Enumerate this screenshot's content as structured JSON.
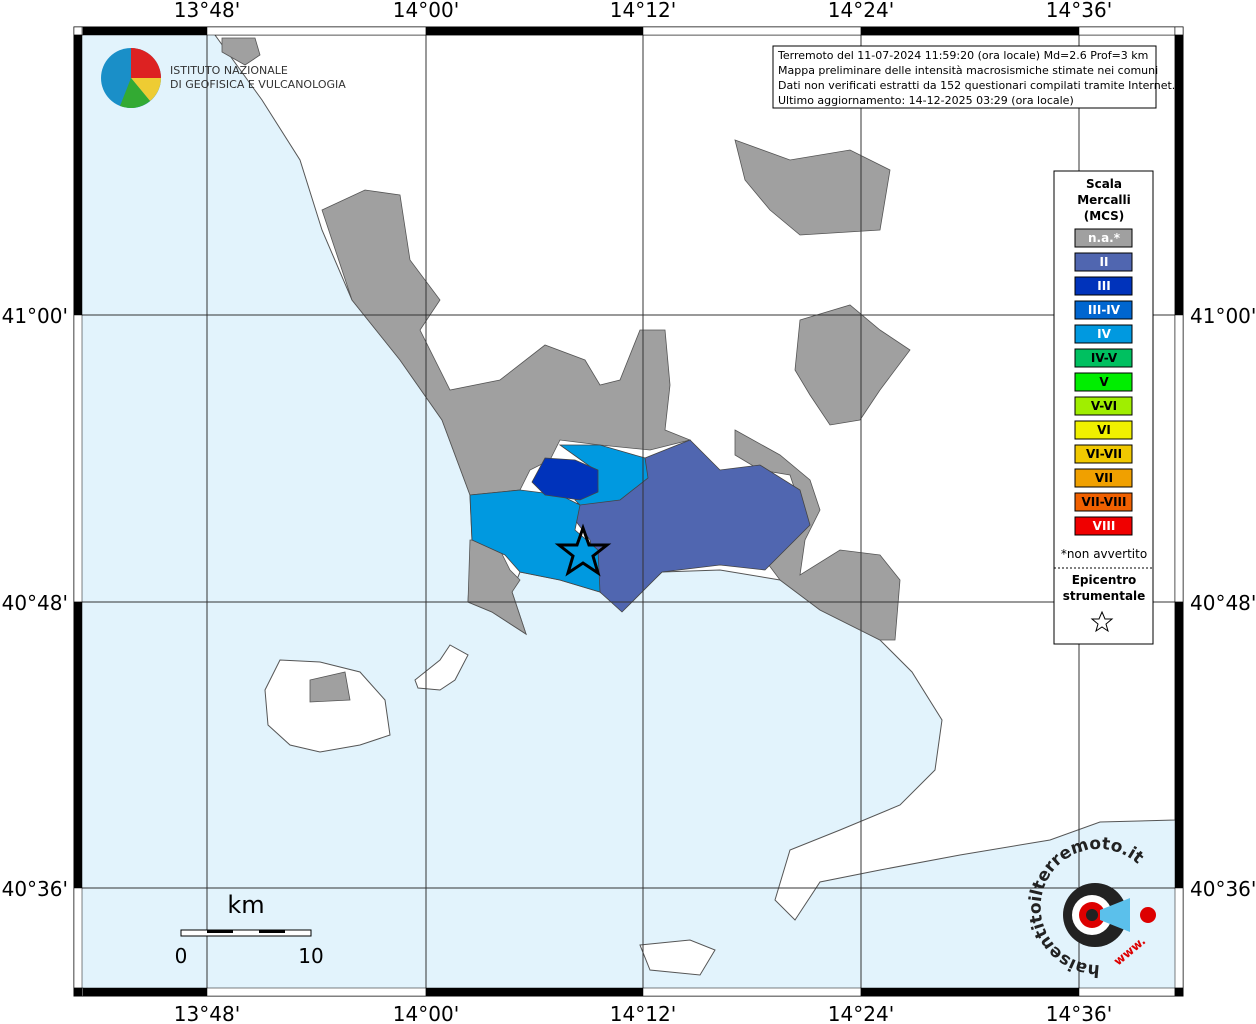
{
  "map": {
    "lon_labels": [
      "13°48'",
      "14°00'",
      "14°12'",
      "14°24'",
      "14°36'"
    ],
    "lat_labels": [
      "41°00'",
      "40°48'",
      "40°36'"
    ],
    "info": [
      "Terremoto del 11-07-2024 11:59:20 (ora locale) Md=2.6 Prof=3 km",
      "Mappa preliminare delle intensità macrosismiche stimate nei comuni",
      "Dati non verificati estratti da 152 questionari compilati tramite Internet.",
      "Ultimo aggiornamento: 14-12-2025 03:29 (ora locale)"
    ],
    "logo": [
      "ISTITUTO NAZIONALE",
      "DI GEOFISICA E VULCANOLOGIA"
    ],
    "legend": {
      "title": [
        "Scala",
        "Mercalli",
        "(MCS)"
      ],
      "items": [
        {
          "label": "n.a.*",
          "color": "#a0a0a0",
          "text": "#ffffff"
        },
        {
          "label": "II",
          "color": "#5066b0",
          "text": "#ffffff"
        },
        {
          "label": "III",
          "color": "#0033bb",
          "text": "#ffffff"
        },
        {
          "label": "III-IV",
          "color": "#0066d0",
          "text": "#ffffff"
        },
        {
          "label": "IV",
          "color": "#0099e0",
          "text": "#ffffff"
        },
        {
          "label": "IV-V",
          "color": "#00c060",
          "text": "#000000"
        },
        {
          "label": "V",
          "color": "#00ee00",
          "text": "#000000"
        },
        {
          "label": "V-VI",
          "color": "#a0ee00",
          "text": "#000000"
        },
        {
          "label": "VI",
          "color": "#f0f000",
          "text": "#000000"
        },
        {
          "label": "VI-VII",
          "color": "#f0c800",
          "text": "#000000"
        },
        {
          "label": "VII",
          "color": "#f0a000",
          "text": "#000000"
        },
        {
          "label": "VII-VIII",
          "color": "#f06000",
          "text": "#000000"
        },
        {
          "label": "VIII",
          "color": "#f00000",
          "text": "#ffffff"
        }
      ],
      "note": "*non avvertito",
      "epicenter": [
        "Epicentro",
        "strumentale"
      ]
    },
    "scale_bar": {
      "unit": "km",
      "labels": [
        0,
        10
      ]
    },
    "badge": {
      "site": "haisentitoilterremoto.it",
      "www": "www."
    }
  }
}
